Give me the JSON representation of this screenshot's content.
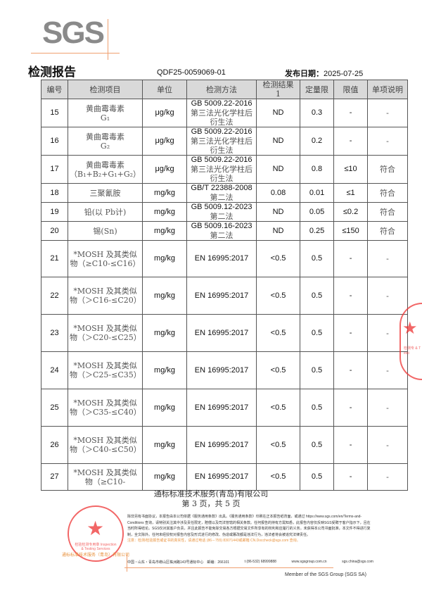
{
  "header": {
    "logo": "SGS",
    "title": "检测报告",
    "report_no": "QDF25-0059069-01",
    "date_label": "发布日期：",
    "date": "2025-07-25"
  },
  "table": {
    "columns": [
      "编号",
      "检测项目",
      "单位",
      "检测方法",
      "检测结果\n1",
      "定量限",
      "限值",
      "单项说明"
    ],
    "rows": [
      {
        "no": "15",
        "item": "黄曲霉毒素\nG₁",
        "unit": "μg/kg",
        "method_en": "GB 5009.22-2016",
        "method_cn": "第三法光化学柱后衍生法",
        "result": "ND",
        "loq": "0.3",
        "limit": "-",
        "note": "-"
      },
      {
        "no": "16",
        "item": "黄曲霉毒素\nG₂",
        "unit": "μg/kg",
        "method_en": "GB 5009.22-2016",
        "method_cn": "第三法光化学柱后衍生法",
        "result": "ND",
        "loq": "0.2",
        "limit": "-",
        "note": "-"
      },
      {
        "no": "17",
        "item": "黄曲霉毒素\n（B₁+B₂+G₁+G₂）",
        "unit": "μg/kg",
        "method_en": "GB 5009.22-2016",
        "method_cn": "第三法光化学柱后衍生法",
        "result": "ND",
        "loq": "0.8",
        "limit": "≤10",
        "note": "符合"
      },
      {
        "no": "18",
        "item": "三聚氰胺",
        "unit": "mg/kg",
        "method_en": "GB/T 22388-2008",
        "method_cn": "第二法",
        "result": "0.08",
        "loq": "0.01",
        "limit": "≤1",
        "note": "符合"
      },
      {
        "no": "19",
        "item": "铅(以 Pb计)",
        "unit": "mg/kg",
        "method_en": "GB 5009.12-2023",
        "method_cn": "第二法",
        "result": "ND",
        "loq": "0.05",
        "limit": "≤0.2",
        "note": "符合"
      },
      {
        "no": "20",
        "item": "锡(Sn)",
        "unit": "mg/kg",
        "method_en": "GB 5009.16-2023",
        "method_cn": "第二法",
        "result": "ND",
        "loq": "0.25",
        "limit": "≤150",
        "note": "符合"
      },
      {
        "no": "21",
        "item": "*MOSH 及其类似物（≥C10-≤C16）",
        "unit": "mg/kg",
        "method_en": "EN 16995:2017",
        "method_cn": "",
        "result": "<0.5",
        "loq": "0.5",
        "limit": "-",
        "note": "-"
      },
      {
        "no": "22",
        "item": "*MOSH 及其类似物（＞C16-≤C20）",
        "unit": "mg/kg",
        "method_en": "EN 16995:2017",
        "method_cn": "",
        "result": "<0.5",
        "loq": "0.5",
        "limit": "-",
        "note": "-"
      },
      {
        "no": "23",
        "item": "*MOSH 及其类似物（＞C20-≤C25）",
        "unit": "mg/kg",
        "method_en": "EN 16995:2017",
        "method_cn": "",
        "result": "<0.5",
        "loq": "0.5",
        "limit": "-",
        "note": "-"
      },
      {
        "no": "24",
        "item": "*MOSH 及其类似物（＞C25-≤C35）",
        "unit": "mg/kg",
        "method_en": "EN 16995:2017",
        "method_cn": "",
        "result": "<0.5",
        "loq": "0.5",
        "limit": "-",
        "note": "-"
      },
      {
        "no": "25",
        "item": "*MOSH 及其类似物（＞C35-≤C40）",
        "unit": "mg/kg",
        "method_en": "EN 16995:2017",
        "method_cn": "",
        "result": "<0.5",
        "loq": "0.5",
        "limit": "-",
        "note": "-"
      },
      {
        "no": "26",
        "item": "*MOSH 及其类似物（＞C40-≤C50）",
        "unit": "mg/kg",
        "method_en": "EN 16995:2017",
        "method_cn": "",
        "result": "<0.5",
        "loq": "0.5",
        "limit": "-",
        "note": "-"
      },
      {
        "no": "27",
        "item": "*MOSH 及其类似物（≥C10-",
        "unit": "mg/kg",
        "method_en": "EN 16995:2017",
        "method_cn": "",
        "result": "<0.5",
        "loq": "0.5",
        "limit": "-",
        "note": "-"
      }
    ]
  },
  "footer": {
    "company": "通标标准技术服务(青岛)有限公司",
    "page": "第 3 页，共 5 页",
    "terms": "除非另有书面协议，本报告由本公司依据《服务通用条款》出具。《服务通用条款》印刷在正本报告纸背面，或通过 https://www.sgs.com/en/Terms-and-Conditions 查询，请特别关注其中涉及责任限定，赔偿以及司法管辖的相关条款。任何报告的持有方需知悉，此报告内容仅反映SGS受聘于客户指示下，且在当时所得结论。SGS仅对其客户负责，并且此报告不能免除交易各方根据交易文件所享有的权利和应履行的义务。未获得本公司书面批准，本文件不得进行复制，全文除外。任何未经授权对报告内容及形式进行的修改、伪造或篡改都是违法行为，违法者将会被追究法律责任。",
    "warning": "注意：检测/检验报告或证书的真实性，请通过电话 (86－755) 83071443或邮箱 CN.Doccheck@sgs.com 查询。",
    "address": "中国・山东・青岛市崂山区株洲路143号通标中心　邮编：266101",
    "phone": "t (86-532) 68999888",
    "website": "www.sgsgroup.com.cn",
    "email": "sgs.china@sgs.com",
    "member": "Member of the SGS Group (SGS SA)",
    "stamp_text": "检验检测专用章 Inspection & Testing Services",
    "stamp_company": "通标标准技术服务（青岛）有限公司",
    "side_stamp_text": "检测专 & Testi"
  },
  "colors": {
    "accent": "#f0a070",
    "stamp": "#e33333",
    "header_bg": "#d9d9d9"
  }
}
